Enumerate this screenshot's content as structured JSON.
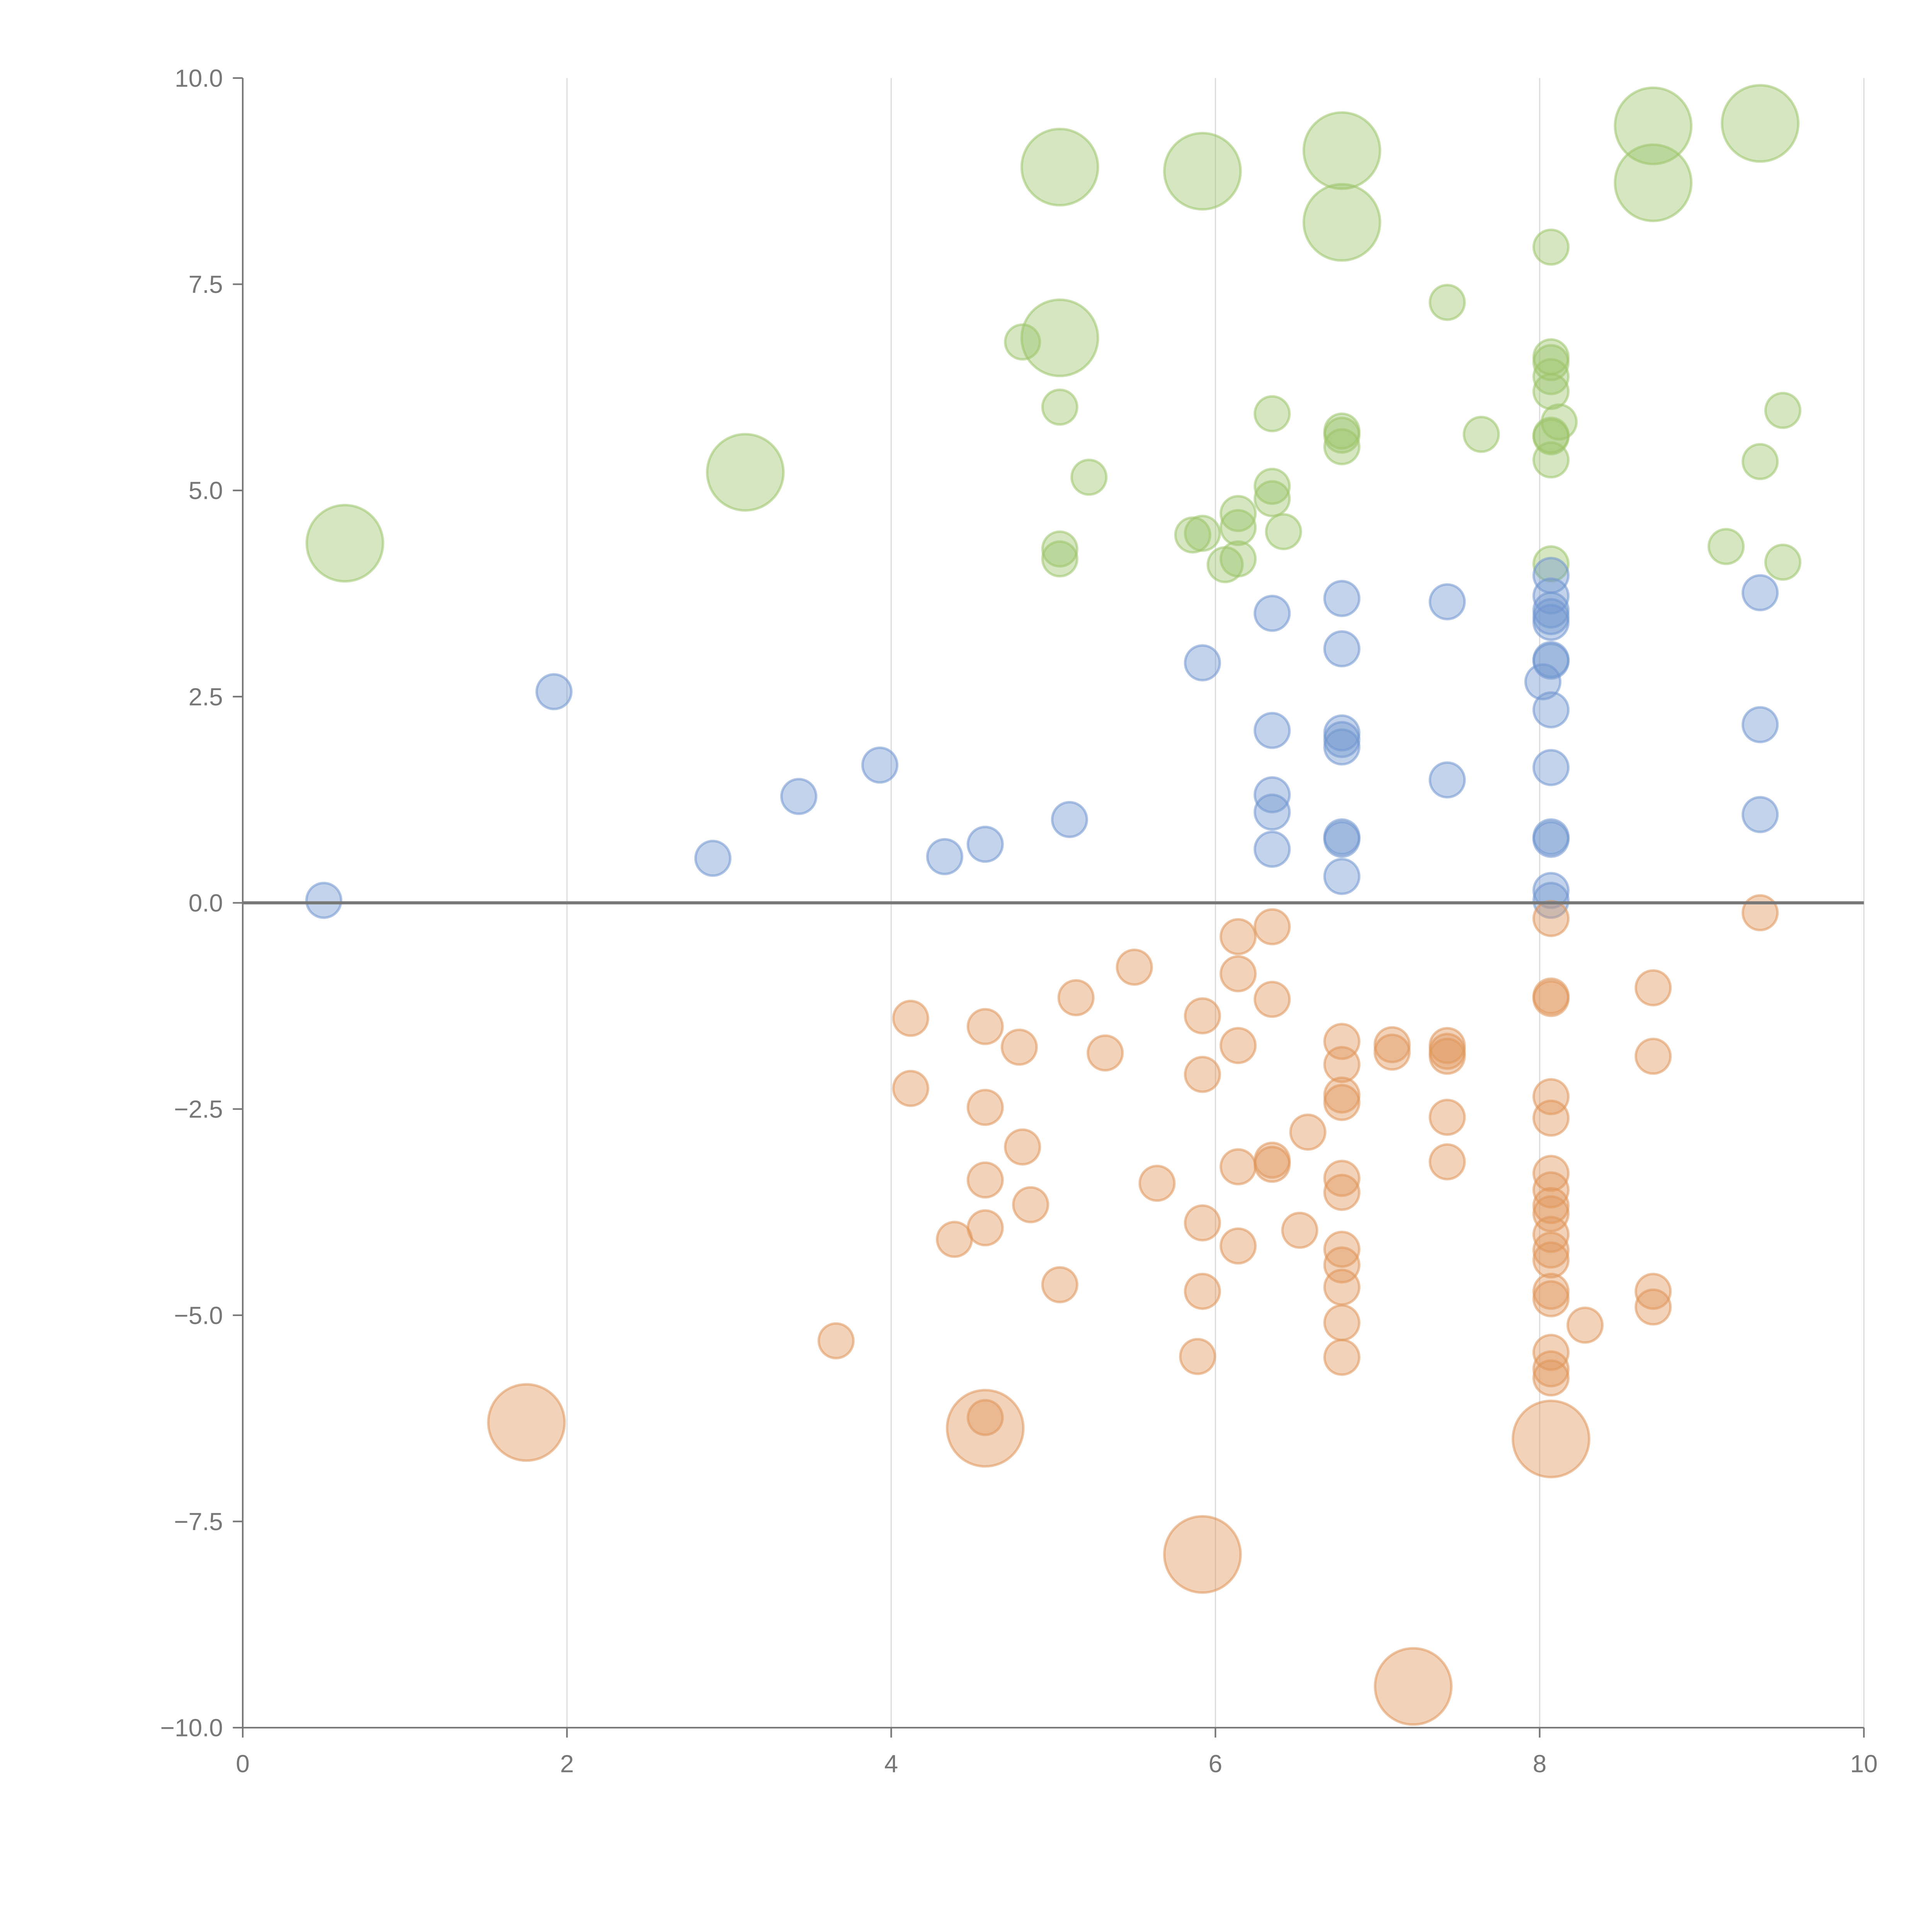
{
  "chart_data": {
    "type": "scatter",
    "title": "",
    "xlabel": "",
    "ylabel": "",
    "xlim": [
      0,
      10
    ],
    "ylim": [
      -10,
      10
    ],
    "grid": "vertical",
    "x_ticks": [
      "0",
      "2",
      "4",
      "6",
      "8",
      "10"
    ],
    "x_tick_values": [
      0,
      2,
      4,
      6,
      8,
      10
    ],
    "y_ticks": [
      "10.0",
      "7.5",
      "5.0",
      "2.5",
      "0.0",
      "−2.5",
      "−5.0",
      "−7.5",
      "−10.0"
    ],
    "y_tick_values": [
      10,
      7.5,
      5,
      2.5,
      0,
      -2.5,
      -5,
      -7.5,
      -10
    ],
    "series": [
      {
        "name": "green",
        "color": "#9cc46a",
        "points": [
          [
            0.63,
            4.36,
            2.2
          ],
          [
            3.1,
            5.22,
            2.2
          ],
          [
            5.04,
            8.92,
            2.2
          ],
          [
            5.92,
            8.87,
            2.2
          ],
          [
            6.78,
            9.12,
            2.2
          ],
          [
            6.78,
            8.25,
            2.2
          ],
          [
            8.7,
            9.42,
            2.2
          ],
          [
            8.7,
            8.73,
            2.2
          ],
          [
            9.36,
            9.45,
            2.2
          ],
          [
            5.04,
            6.85,
            2.2
          ],
          [
            8.07,
            7.95,
            1
          ],
          [
            7.43,
            7.28,
            1
          ],
          [
            4.81,
            6.8,
            1
          ],
          [
            5.04,
            6.01,
            1
          ],
          [
            6.35,
            5.93,
            1
          ],
          [
            6.78,
            5.72,
            1
          ],
          [
            6.78,
            5.67,
            1
          ],
          [
            6.78,
            5.53,
            1
          ],
          [
            7.64,
            5.68,
            1
          ],
          [
            8.07,
            6.62,
            1
          ],
          [
            8.07,
            6.55,
            1
          ],
          [
            8.07,
            6.38,
            1
          ],
          [
            8.07,
            6.2,
            1
          ],
          [
            8.12,
            5.83,
            1
          ],
          [
            8.07,
            5.67,
            1
          ],
          [
            8.07,
            5.65,
            1
          ],
          [
            8.07,
            5.37,
            1
          ],
          [
            9.5,
            5.97,
            1
          ],
          [
            9.36,
            5.35,
            1
          ],
          [
            5.22,
            5.16,
            1
          ],
          [
            6.35,
            5.05,
            1
          ],
          [
            6.35,
            4.9,
            1
          ],
          [
            6.14,
            4.72,
            1
          ],
          [
            6.14,
            4.55,
            1
          ],
          [
            6.42,
            4.5,
            1
          ],
          [
            5.86,
            4.46,
            1
          ],
          [
            5.92,
            4.48,
            1
          ],
          [
            6.14,
            4.17,
            1
          ],
          [
            6.06,
            4.1,
            1
          ],
          [
            5.04,
            4.29,
            1
          ],
          [
            5.04,
            4.17,
            1
          ],
          [
            8.07,
            4.11,
            1
          ],
          [
            9.15,
            4.32,
            1
          ],
          [
            9.5,
            4.13,
            1
          ]
        ]
      },
      {
        "name": "blue",
        "color": "#6f96cf",
        "points": [
          [
            0.5,
            0.03,
            1
          ],
          [
            1.92,
            2.56,
            1
          ],
          [
            2.9,
            0.54,
            1
          ],
          [
            3.43,
            1.29,
            1
          ],
          [
            3.93,
            1.67,
            1
          ],
          [
            4.33,
            0.56,
            1
          ],
          [
            4.58,
            0.71,
            1
          ],
          [
            5.1,
            1.01,
            1
          ],
          [
            5.92,
            2.91,
            1
          ],
          [
            6.35,
            3.51,
            1
          ],
          [
            6.35,
            2.09,
            1
          ],
          [
            6.35,
            1.31,
            1
          ],
          [
            6.35,
            1.1,
            1
          ],
          [
            6.35,
            0.65,
            1
          ],
          [
            6.78,
            3.69,
            1
          ],
          [
            6.78,
            3.08,
            1
          ],
          [
            6.78,
            2.06,
            1
          ],
          [
            6.78,
            1.98,
            1
          ],
          [
            6.78,
            1.89,
            1
          ],
          [
            6.78,
            0.8,
            1
          ],
          [
            6.78,
            0.77,
            1
          ],
          [
            6.78,
            0.32,
            1
          ],
          [
            7.43,
            3.65,
            1
          ],
          [
            7.43,
            1.49,
            1
          ],
          [
            8.07,
            3.97,
            1
          ],
          [
            8.07,
            3.72,
            1
          ],
          [
            8.07,
            3.55,
            1
          ],
          [
            8.07,
            3.47,
            1
          ],
          [
            8.07,
            3.4,
            1
          ],
          [
            8.07,
            2.95,
            1
          ],
          [
            8.07,
            2.93,
            1
          ],
          [
            8.02,
            2.68,
            1
          ],
          [
            8.07,
            2.34,
            1
          ],
          [
            8.07,
            1.64,
            1
          ],
          [
            8.07,
            0.8,
            1
          ],
          [
            8.07,
            0.77,
            1
          ],
          [
            8.07,
            0.15,
            1
          ],
          [
            8.07,
            0.03,
            1
          ],
          [
            9.36,
            3.76,
            1
          ],
          [
            9.36,
            2.16,
            1
          ],
          [
            9.36,
            1.07,
            1
          ]
        ]
      },
      {
        "name": "orange",
        "color": "#e0955a",
        "points": [
          [
            1.75,
            -6.3,
            2.2
          ],
          [
            4.58,
            -6.37,
            2.2
          ],
          [
            5.92,
            -7.9,
            2.2
          ],
          [
            7.22,
            -9.5,
            2.2
          ],
          [
            8.07,
            -6.5,
            2.2
          ],
          [
            3.66,
            -5.31,
            1
          ],
          [
            4.12,
            -1.4,
            1
          ],
          [
            4.12,
            -2.25,
            1
          ],
          [
            4.58,
            -1.5,
            1
          ],
          [
            4.58,
            -2.48,
            1
          ],
          [
            4.58,
            -3.36,
            1
          ],
          [
            4.58,
            -3.94,
            1
          ],
          [
            4.58,
            -6.24,
            1
          ],
          [
            4.39,
            -4.08,
            1
          ],
          [
            4.79,
            -1.75,
            1
          ],
          [
            4.81,
            -2.96,
            1
          ],
          [
            4.86,
            -3.66,
            1
          ],
          [
            5.04,
            -4.63,
            1
          ],
          [
            5.14,
            -1.15,
            1
          ],
          [
            5.32,
            -1.82,
            1
          ],
          [
            5.5,
            -0.78,
            1
          ],
          [
            5.64,
            -3.4,
            1
          ],
          [
            5.92,
            -1.37,
            1
          ],
          [
            5.92,
            -2.08,
            1
          ],
          [
            5.92,
            -3.88,
            1
          ],
          [
            5.92,
            -4.71,
            1
          ],
          [
            5.89,
            -5.5,
            1
          ],
          [
            6.14,
            -0.41,
            1
          ],
          [
            6.14,
            -0.86,
            1
          ],
          [
            6.14,
            -1.73,
            1
          ],
          [
            6.14,
            -3.2,
            1
          ],
          [
            6.14,
            -4.16,
            1
          ],
          [
            6.35,
            -0.29,
            1
          ],
          [
            6.35,
            -1.17,
            1
          ],
          [
            6.35,
            -3.12,
            1
          ],
          [
            6.35,
            -3.17,
            1
          ],
          [
            6.52,
            -3.97,
            1
          ],
          [
            6.57,
            -2.78,
            1
          ],
          [
            6.78,
            -1.68,
            1
          ],
          [
            6.78,
            -1.96,
            1
          ],
          [
            6.78,
            -2.33,
            1
          ],
          [
            6.78,
            -2.42,
            1
          ],
          [
            6.78,
            -3.34,
            1
          ],
          [
            6.78,
            -3.51,
            1
          ],
          [
            6.78,
            -4.2,
            1
          ],
          [
            6.78,
            -4.39,
            1
          ],
          [
            6.78,
            -4.66,
            1
          ],
          [
            6.78,
            -5.09,
            1
          ],
          [
            6.78,
            -5.51,
            1
          ],
          [
            7.09,
            -1.72,
            1
          ],
          [
            7.09,
            -1.81,
            1
          ],
          [
            7.43,
            -1.73,
            1
          ],
          [
            7.43,
            -1.8,
            1
          ],
          [
            7.43,
            -1.86,
            1
          ],
          [
            7.43,
            -2.6,
            1
          ],
          [
            7.43,
            -3.14,
            1
          ],
          [
            8.07,
            -0.19,
            1
          ],
          [
            8.07,
            -1.13,
            1
          ],
          [
            8.07,
            -1.16,
            1
          ],
          [
            8.07,
            -2.35,
            1
          ],
          [
            8.07,
            -2.61,
            1
          ],
          [
            8.07,
            -3.28,
            1
          ],
          [
            8.07,
            -3.48,
            1
          ],
          [
            8.07,
            -3.67,
            1
          ],
          [
            8.07,
            -3.77,
            1
          ],
          [
            8.07,
            -4.02,
            1
          ],
          [
            8.07,
            -4.21,
            1
          ],
          [
            8.07,
            -4.33,
            1
          ],
          [
            8.07,
            -4.71,
            1
          ],
          [
            8.07,
            -4.8,
            1
          ],
          [
            8.07,
            -5.45,
            1
          ],
          [
            8.07,
            -5.65,
            1
          ],
          [
            8.07,
            -5.76,
            1
          ],
          [
            8.28,
            -5.12,
            1
          ],
          [
            8.7,
            -1.03,
            1
          ],
          [
            8.7,
            -1.86,
            1
          ],
          [
            8.7,
            -4.71,
            1
          ],
          [
            8.7,
            -4.9,
            1
          ],
          [
            9.36,
            -0.12,
            1
          ]
        ]
      }
    ]
  }
}
